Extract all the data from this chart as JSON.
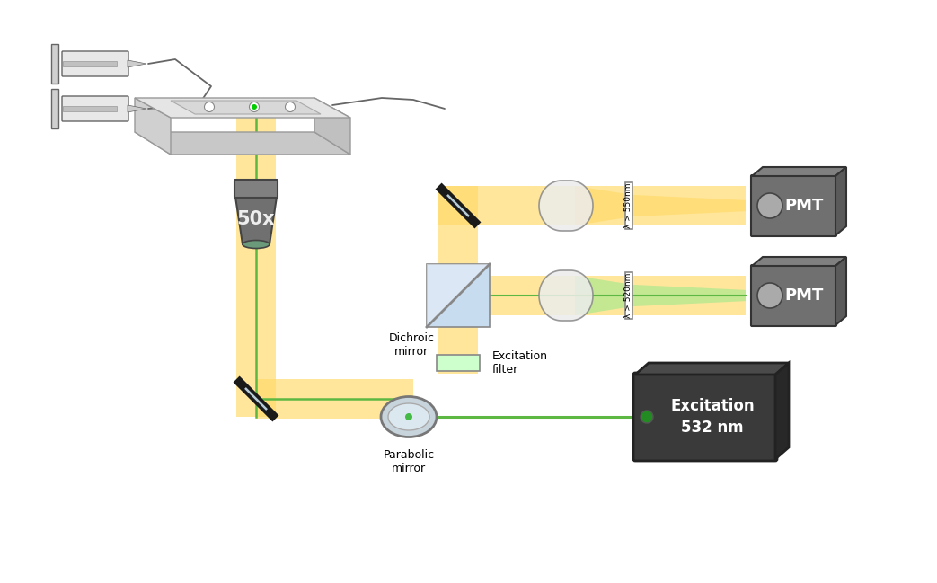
{
  "bg_color": "#ffffff",
  "yellow_color": "#FFD966",
  "yellow_alpha": 0.65,
  "green_color": "#5DB843",
  "green_light": "#90EE90",
  "gray_dark": "#595959",
  "gray_mid": "#808080",
  "gray_light": "#BFBFBF",
  "gray_lighter": "#D9D9D9",
  "blue_light": "#BDD7EE",
  "pmt_label": "PMT",
  "excitation_label": "Excitation\n532 nm",
  "objective_label": "50x",
  "dichroic_label": "Dichroic\nmirror",
  "excitation_filter_label": "Excitation\nfilter",
  "parabolic_mirror_label": "Parabolic\nmirror",
  "filter1_label": "λ > 550nm",
  "filter2_label": "λ > 520nm"
}
